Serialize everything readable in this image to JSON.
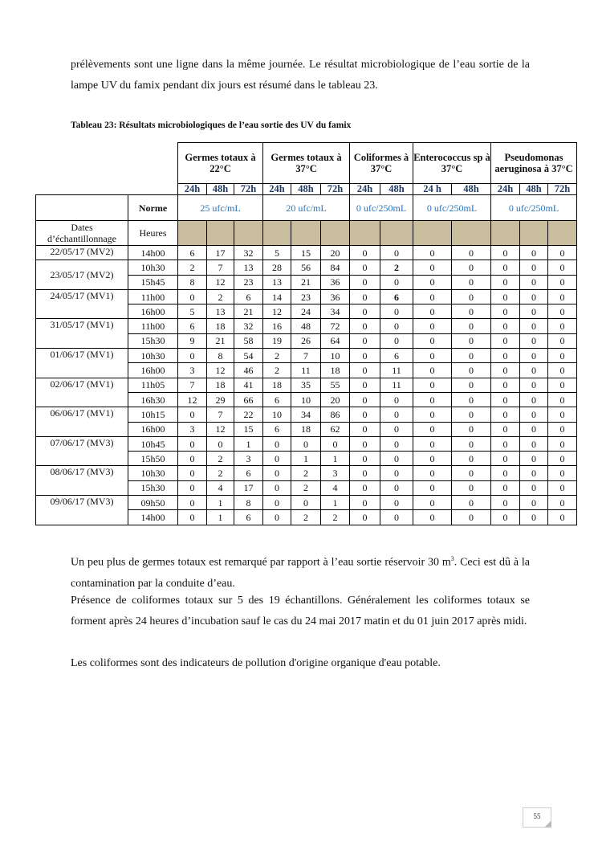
{
  "intro": "prélèvements sont une ligne dans la même journée. Le résultat microbiologique de l’eau sortie de la lampe UV du famix pendant dix jours est résumé dans le tableau 23.",
  "caption": "Tableau 23: Résultats microbiologiques de l’eau sortie des UV du famix",
  "table": {
    "groups": [
      {
        "label": "Germes totaux à 22°C",
        "subs": [
          "24h",
          "48h",
          "72h"
        ],
        "norme": "25 ufc/mL"
      },
      {
        "label": "Germes totaux à 37°C",
        "subs": [
          "24h",
          "48h",
          "72h"
        ],
        "norme": "20 ufc/mL"
      },
      {
        "label": "Coliformes à 37°C",
        "subs": [
          "24h",
          "48h"
        ],
        "norme": "0 ufc/250mL"
      },
      {
        "label": "Enterococcus sp à 37°C",
        "subs": [
          "24 h",
          "48h"
        ],
        "norme": "0 ufc/250mL"
      },
      {
        "label": "Pseudomonas aeruginosa à 37°C",
        "subs": [
          "24h",
          "48h",
          "72h"
        ],
        "norme": "0 ufc/250mL"
      }
    ],
    "norme_label": "Norme",
    "dates_label": "Dates d’échantillonnage",
    "hours_label": "Heures",
    "samples": [
      {
        "date": "22/05/17 (MV2)",
        "rows": [
          {
            "time": "14h00",
            "values": [
              "6",
              "17",
              "32",
              "5",
              "15",
              "20",
              "0",
              "0",
              "0",
              "0",
              "0",
              "0",
              "0"
            ]
          }
        ]
      },
      {
        "date": "23/05/17 (MV2)",
        "rows": [
          {
            "time": "10h30",
            "values": [
              "2",
              "7",
              "13",
              "28",
              "56",
              "84",
              "0",
              "2",
              "0",
              "0",
              "0",
              "0",
              "0"
            ],
            "bold": [
              7
            ]
          },
          {
            "time": "15h45",
            "values": [
              "8",
              "12",
              "23",
              "13",
              "21",
              "36",
              "0",
              "0",
              "0",
              "0",
              "0",
              "0",
              "0"
            ]
          }
        ]
      },
      {
        "date": "24/05/17 (MV1)",
        "rows": [
          {
            "time": "11h00",
            "values": [
              "0",
              "2",
              "6",
              "14",
              "23",
              "36",
              "0",
              "6",
              "0",
              "0",
              "0",
              "0",
              "0"
            ],
            "bold": [
              7
            ]
          },
          {
            "time": "16h00",
            "values": [
              "5",
              "13",
              "21",
              "12",
              "24",
              "34",
              "0",
              "0",
              "0",
              "0",
              "0",
              "0",
              "0"
            ]
          }
        ]
      },
      {
        "date": "31/05/17 (MV1)",
        "rows": [
          {
            "time": "11h00",
            "values": [
              "6",
              "18",
              "32",
              "16",
              "48",
              "72",
              "0",
              "0",
              "0",
              "0",
              "0",
              "0",
              "0"
            ]
          },
          {
            "time": "15h30",
            "values": [
              "9",
              "21",
              "58",
              "19",
              "26",
              "64",
              "0",
              "0",
              "0",
              "0",
              "0",
              "0",
              "0"
            ]
          }
        ]
      },
      {
        "date": "01/06/17 (MV1)",
        "rows": [
          {
            "time": "10h30",
            "values": [
              "0",
              "8",
              "54",
              "2",
              "7",
              "10",
              "0",
              "6",
              "0",
              "0",
              "0",
              "0",
              "0"
            ]
          },
          {
            "time": "16h00",
            "values": [
              "3",
              "12",
              "46",
              "2",
              "11",
              "18",
              "0",
              "11",
              "0",
              "0",
              "0",
              "0",
              "0"
            ]
          }
        ]
      },
      {
        "date": "02/06/17 (MV1)",
        "rows": [
          {
            "time": "11h05",
            "values": [
              "7",
              "18",
              "41",
              "18",
              "35",
              "55",
              "0",
              "11",
              "0",
              "0",
              "0",
              "0",
              "0"
            ]
          },
          {
            "time": "16h30",
            "values": [
              "12",
              "29",
              "66",
              "6",
              "10",
              "20",
              "0",
              "0",
              "0",
              "0",
              "0",
              "0",
              "0"
            ]
          }
        ]
      },
      {
        "date": "06/06/17 (MV1)",
        "rows": [
          {
            "time": "10h15",
            "values": [
              "0",
              "7",
              "22",
              "10",
              "34",
              "86",
              "0",
              "0",
              "0",
              "0",
              "0",
              "0",
              "0"
            ]
          },
          {
            "time": "16h00",
            "values": [
              "3",
              "12",
              "15",
              "6",
              "18",
              "62",
              "0",
              "0",
              "0",
              "0",
              "0",
              "0",
              "0"
            ]
          }
        ]
      },
      {
        "date": "07/06/17 (MV3)",
        "rows": [
          {
            "time": "10h45",
            "values": [
              "0",
              "0",
              "1",
              "0",
              "0",
              "0",
              "0",
              "0",
              "0",
              "0",
              "0",
              "0",
              "0"
            ]
          },
          {
            "time": "15h50",
            "values": [
              "0",
              "2",
              "3",
              "0",
              "1",
              "1",
              "0",
              "0",
              "0",
              "0",
              "0",
              "0",
              "0"
            ]
          }
        ]
      },
      {
        "date": "08/06/17 (MV3)",
        "rows": [
          {
            "time": "10h30",
            "values": [
              "0",
              "2",
              "6",
              "0",
              "2",
              "3",
              "0",
              "0",
              "0",
              "0",
              "0",
              "0",
              "0"
            ]
          },
          {
            "time": "15h30",
            "values": [
              "0",
              "4",
              "17",
              "0",
              "2",
              "4",
              "0",
              "0",
              "0",
              "0",
              "0",
              "0",
              "0"
            ]
          }
        ]
      },
      {
        "date": "09/06/17 (MV3)",
        "rows": [
          {
            "time": "09h50",
            "values": [
              "0",
              "1",
              "8",
              "0",
              "0",
              "1",
              "0",
              "0",
              "0",
              "0",
              "0",
              "0",
              "0"
            ]
          },
          {
            "time": "14h00",
            "values": [
              "0",
              "1",
              "6",
              "0",
              "2",
              "2",
              "0",
              "0",
              "0",
              "0",
              "0",
              "0",
              "0"
            ]
          }
        ]
      }
    ]
  },
  "para1_a": "Un peu plus de germes totaux est remarqué par rapport à l’eau sortie réservoir 30 m",
  "para1_sup": "3",
  "para1_b": ". Ceci est dû à la contamination par la conduite d’eau.",
  "para2": "Présence de coliformes totaux sur 5 des 19 échantillons. Généralement les coliformes totaux se forment après 24 heures d’incubation sauf le cas du 24 mai 2017 matin et du 01 juin 2017 après midi.",
  "para3": "Les coliformes sont des indicateurs de pollution d'origine organique d'eau potable.",
  "page_number": "55"
}
